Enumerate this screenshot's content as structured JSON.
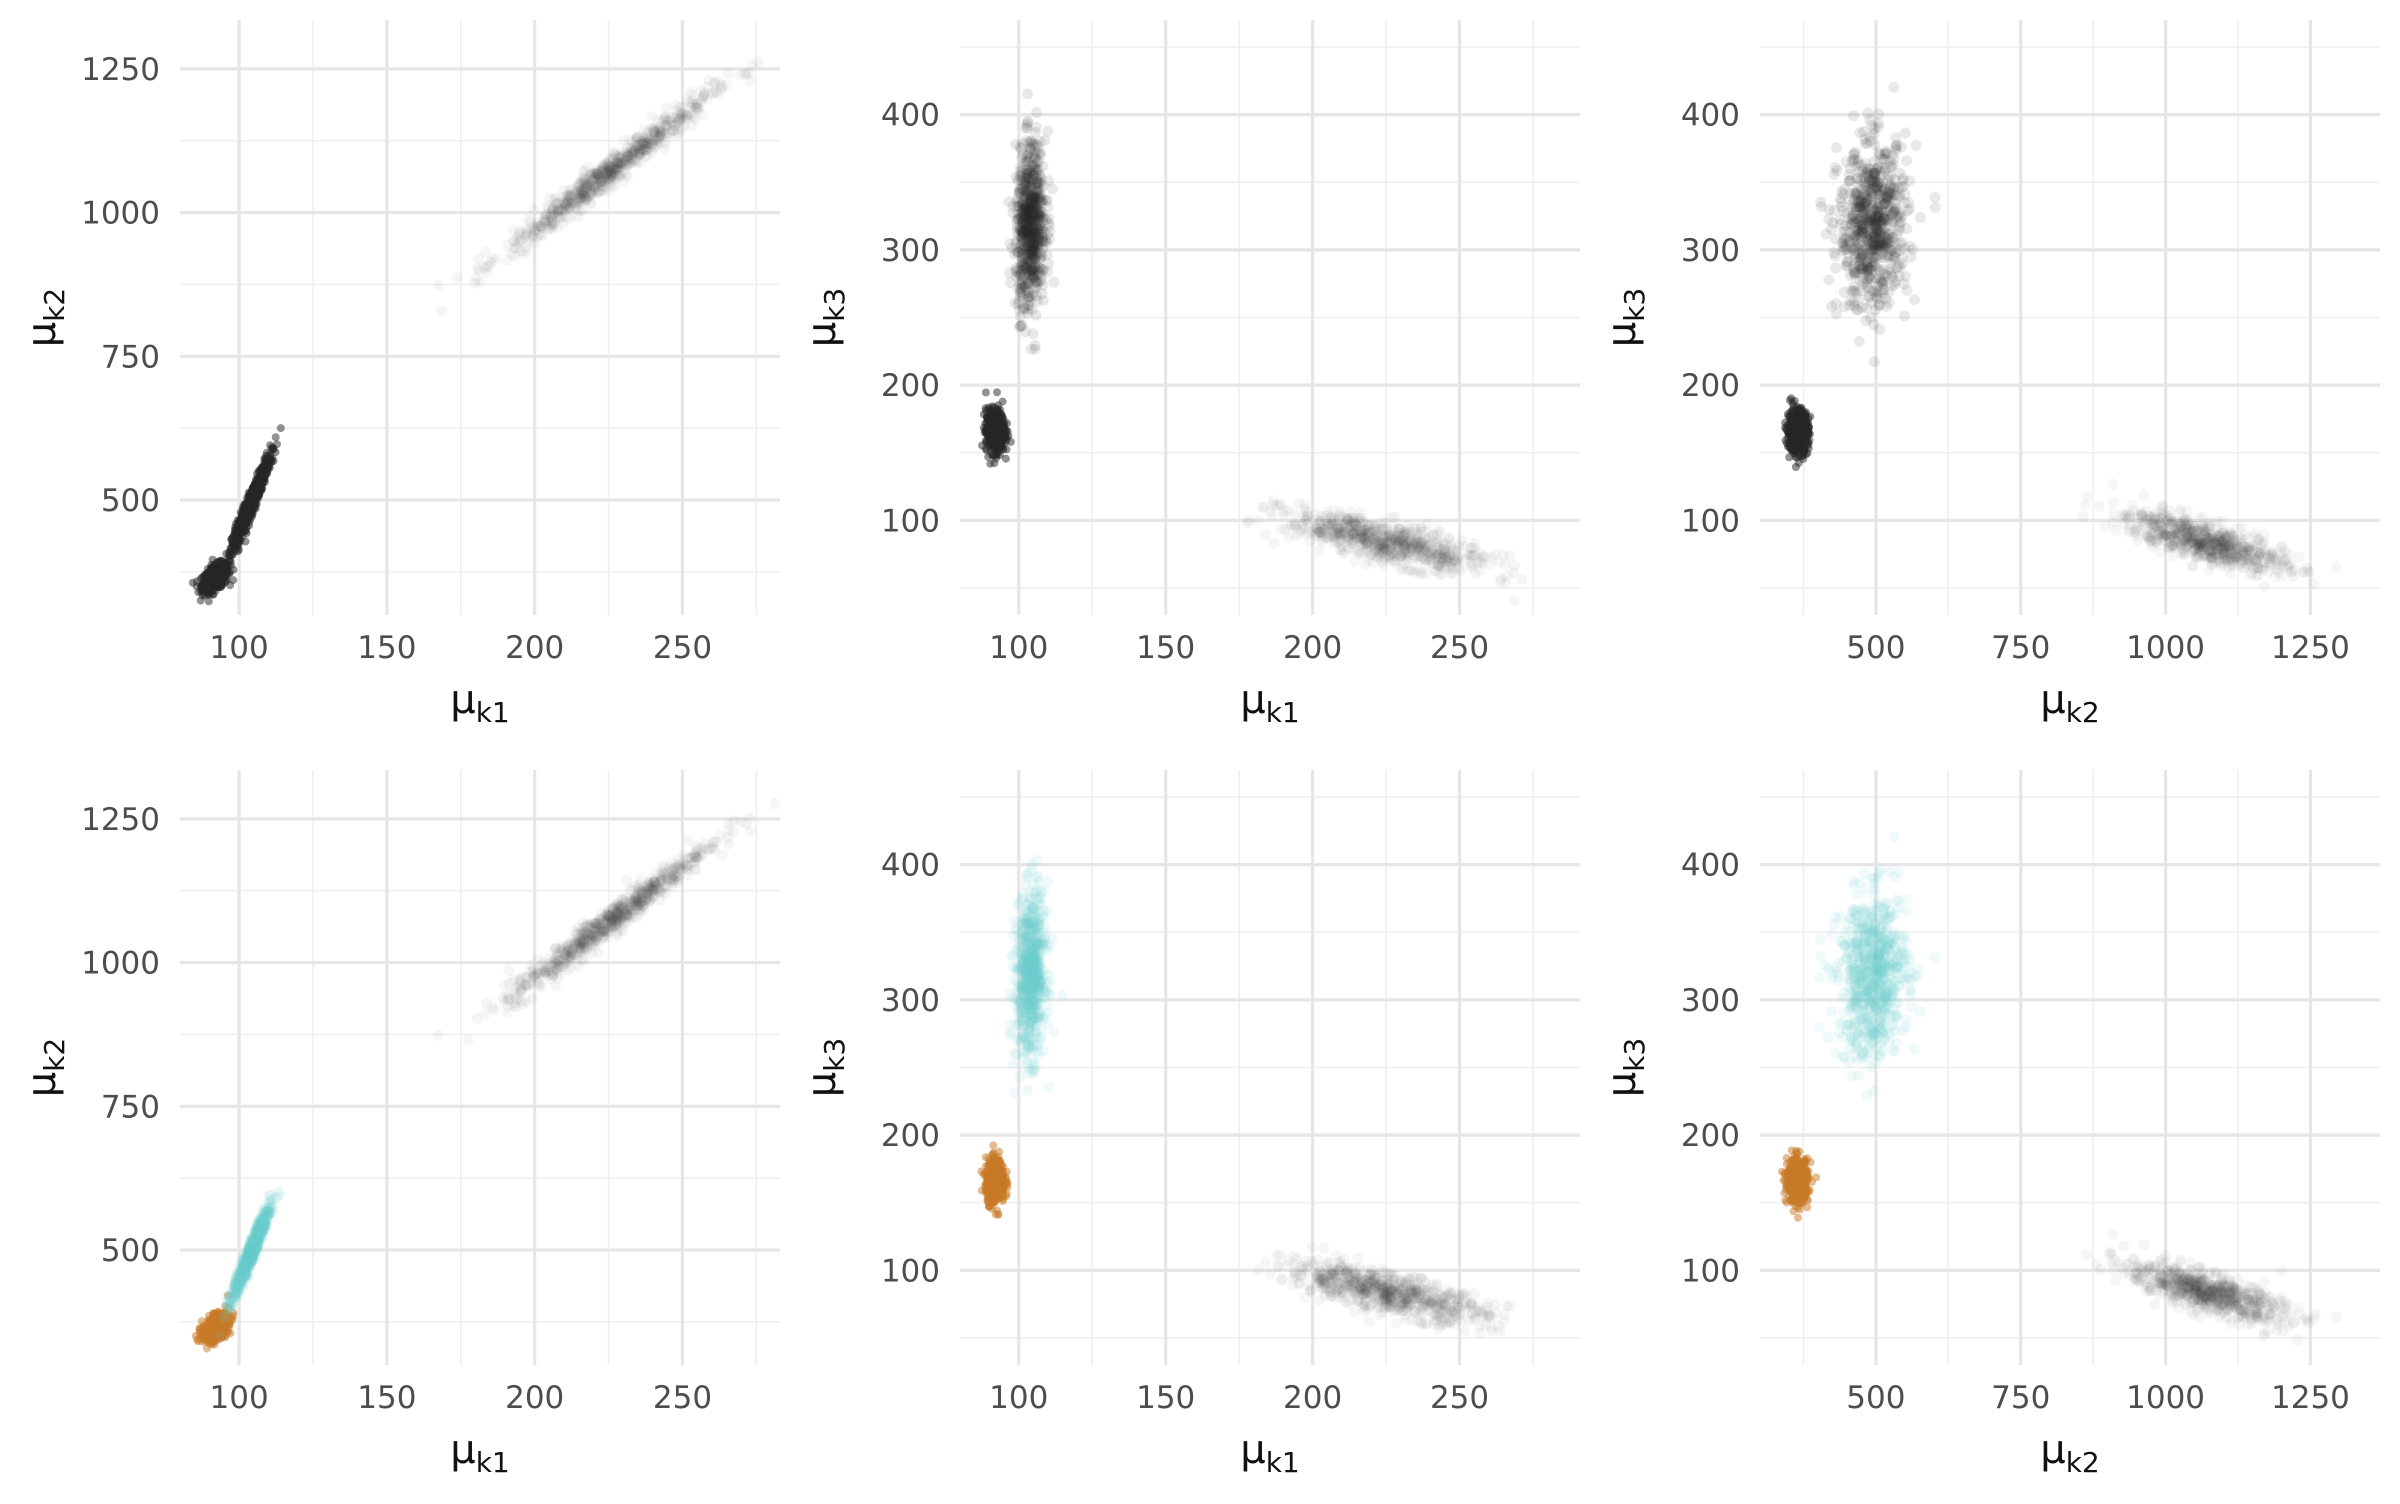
{
  "colors": {
    "background": "#ffffff",
    "grid_major": "#e6e6e6",
    "grid_minor": "#efefef",
    "points_dark": "#262626",
    "points_teal": "#6ccfcf",
    "points_orange": "#c77a26",
    "tick_text": "#4d4d4d"
  },
  "chart_data": [
    {
      "id": "r1c1",
      "type": "scatter",
      "x_label": "μk1",
      "y_label": "μk2",
      "xlim": [
        80,
        283
      ],
      "ylim": [
        300,
        1335
      ],
      "x_ticks": [
        100,
        150,
        200,
        250
      ],
      "y_ticks": [
        500,
        750,
        1000,
        1250
      ],
      "clusters": [
        {
          "center": [
            92,
            365
          ],
          "x_sd": 2.2,
          "y_sd": 12,
          "corr": 0.5,
          "n": 500,
          "spread": "tight",
          "color": "dark"
        },
        {
          "center": [
            104,
            495
          ],
          "x_sd": 3.2,
          "y_sd": 40,
          "corr": 0.96,
          "n": 700,
          "spread": "tight",
          "color": "dark"
        },
        {
          "center": [
            225,
            1070
          ],
          "x_sd": 17,
          "y_sd": 68,
          "corr": 0.98,
          "n": 700,
          "spread": "diffuse",
          "color": "dark"
        }
      ]
    },
    {
      "id": "r1c2",
      "type": "scatter",
      "x_label": "μk1",
      "y_label": "μk3",
      "xlim": [
        80,
        291
      ],
      "ylim": [
        30,
        470
      ],
      "x_ticks": [
        100,
        150,
        200,
        250
      ],
      "y_ticks": [
        100,
        200,
        300,
        400
      ],
      "clusters": [
        {
          "center": [
            92,
            166
          ],
          "x_sd": 1.6,
          "y_sd": 8,
          "corr": 0.0,
          "n": 500,
          "spread": "tight",
          "color": "dark"
        },
        {
          "center": [
            104,
            318
          ],
          "x_sd": 2.5,
          "y_sd": 30,
          "corr": 0.1,
          "n": 700,
          "spread": "medium",
          "color": "dark"
        },
        {
          "center": [
            225,
            84
          ],
          "x_sd": 17,
          "y_sd": 11,
          "corr": -0.75,
          "n": 700,
          "spread": "diffuse",
          "color": "dark"
        }
      ]
    },
    {
      "id": "r1c3",
      "type": "scatter",
      "x_label": "μk2",
      "y_label": "μk3",
      "xlim": [
        300,
        1370
      ],
      "ylim": [
        30,
        470
      ],
      "x_ticks": [
        500,
        750,
        1000,
        1250
      ],
      "y_ticks": [
        100,
        200,
        300,
        400
      ],
      "clusters": [
        {
          "center": [
            365,
            166
          ],
          "x_sd": 9,
          "y_sd": 8,
          "corr": 0.0,
          "n": 500,
          "spread": "tight",
          "color": "dark"
        },
        {
          "center": [
            495,
            318
          ],
          "x_sd": 30,
          "y_sd": 30,
          "corr": 0.1,
          "n": 700,
          "spread": "medium",
          "color": "dark"
        },
        {
          "center": [
            1070,
            84
          ],
          "x_sd": 68,
          "y_sd": 11,
          "corr": -0.75,
          "n": 700,
          "spread": "diffuse",
          "color": "dark"
        }
      ]
    },
    {
      "id": "r2c1",
      "type": "scatter",
      "x_label": "μk1",
      "y_label": "μk2",
      "xlim": [
        80,
        283
      ],
      "ylim": [
        300,
        1335
      ],
      "x_ticks": [
        100,
        150,
        200,
        250
      ],
      "y_ticks": [
        500,
        750,
        1000,
        1250
      ],
      "clusters": [
        {
          "center": [
            92,
            365
          ],
          "x_sd": 2.2,
          "y_sd": 12,
          "corr": 0.5,
          "n": 500,
          "spread": "tight",
          "color": "orange"
        },
        {
          "center": [
            104,
            495
          ],
          "x_sd": 3.2,
          "y_sd": 40,
          "corr": 0.96,
          "n": 700,
          "spread": "medium",
          "color": "teal"
        },
        {
          "center": [
            225,
            1070
          ],
          "x_sd": 17,
          "y_sd": 68,
          "corr": 0.98,
          "n": 700,
          "spread": "diffuse",
          "color": "dark"
        }
      ]
    },
    {
      "id": "r2c2",
      "type": "scatter",
      "x_label": "μk1",
      "y_label": "μk3",
      "xlim": [
        80,
        291
      ],
      "ylim": [
        30,
        470
      ],
      "x_ticks": [
        100,
        150,
        200,
        250
      ],
      "y_ticks": [
        100,
        200,
        300,
        400
      ],
      "clusters": [
        {
          "center": [
            92,
            166
          ],
          "x_sd": 1.6,
          "y_sd": 8,
          "corr": 0.0,
          "n": 500,
          "spread": "tight",
          "color": "orange"
        },
        {
          "center": [
            104,
            318
          ],
          "x_sd": 2.5,
          "y_sd": 30,
          "corr": 0.1,
          "n": 700,
          "spread": "medium",
          "color": "teal"
        },
        {
          "center": [
            225,
            84
          ],
          "x_sd": 17,
          "y_sd": 11,
          "corr": -0.75,
          "n": 700,
          "spread": "diffuse",
          "color": "dark"
        }
      ]
    },
    {
      "id": "r2c3",
      "type": "scatter",
      "x_label": "μk2",
      "y_label": "μk3",
      "xlim": [
        300,
        1370
      ],
      "ylim": [
        30,
        470
      ],
      "x_ticks": [
        500,
        750,
        1000,
        1250
      ],
      "y_ticks": [
        100,
        200,
        300,
        400
      ],
      "clusters": [
        {
          "center": [
            365,
            166
          ],
          "x_sd": 9,
          "y_sd": 8,
          "corr": 0.0,
          "n": 500,
          "spread": "tight",
          "color": "orange"
        },
        {
          "center": [
            495,
            318
          ],
          "x_sd": 30,
          "y_sd": 30,
          "corr": 0.1,
          "n": 700,
          "spread": "medium",
          "color": "teal"
        },
        {
          "center": [
            1070,
            84
          ],
          "x_sd": 68,
          "y_sd": 11,
          "corr": -0.75,
          "n": 700,
          "spread": "diffuse",
          "color": "dark"
        }
      ]
    }
  ]
}
